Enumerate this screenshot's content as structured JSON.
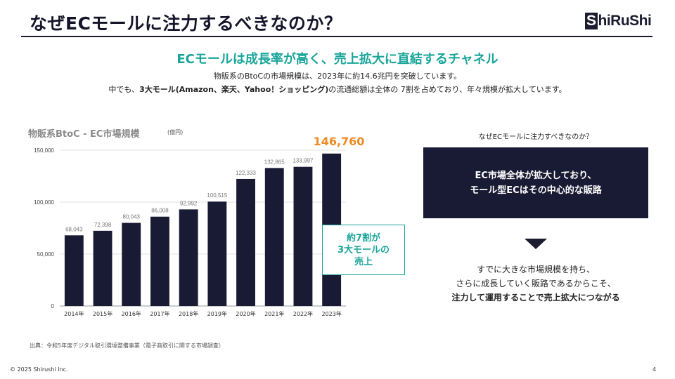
{
  "slide": {
    "title": "なぜECモールに注力するべきなのか？",
    "logo": {
      "part1": "S",
      "part2": "hiRuShi"
    },
    "headline": "ECモールは成長率が高く、売上拡大に直結するチャネル",
    "lead_line1": "物販系のBtoCの市場規模は、2023年に約14.6兆円を突破しています。",
    "lead_line2_pre": "中でも、",
    "lead_line2_bold": "3大モール(Amazon、楽天、Yahoo！ショッピング)",
    "lead_line2_post": "の流通総額は全体の 7割を占めており、年々規模が拡大しています。",
    "source": "出典：令和5年度デジタル取引環境整備事業（電子商取引に関する市場調査）",
    "copyright": "© 2025 Shirushi Inc.",
    "page_number": "4"
  },
  "chart_data": {
    "type": "bar",
    "title": "物販系BtoC - EC市場規模",
    "unit": "(億円)",
    "categories": [
      "2014年",
      "2015年",
      "2016年",
      "2017年",
      "2018年",
      "2019年",
      "2020年",
      "2021年",
      "2022年",
      "2023年"
    ],
    "values": [
      68043,
      72398,
      80043,
      86008,
      92992,
      100515,
      122333,
      132865,
      133997,
      146760
    ],
    "labels": [
      "68,043",
      "72,398",
      "80,043",
      "86,008",
      "92,992",
      "100,515",
      "122,333",
      "132,865",
      "133,997",
      "146,760"
    ],
    "highlight_label": "146,760",
    "yticks": [
      0,
      50000,
      100000,
      150000
    ],
    "ytick_labels": [
      "0",
      "50,000",
      "100,000",
      "150,000"
    ],
    "ylim": [
      0,
      150000
    ],
    "bar_color": "#191a33",
    "highlight_color": "#f08a24",
    "grid": true
  },
  "annotation": {
    "lines": [
      "約7割が",
      "3大モールの",
      "売上"
    ],
    "color": "#1aa59a"
  },
  "side": {
    "question": "なぜECモールに注力すべきなのか？",
    "box_line1": "EC市場全体が拡大しており、",
    "box_line2": "モール型ECはその中心的な販路",
    "conclusion_line1": "すでに大きな市場規模を持ち、",
    "conclusion_line2": "さらに成長していく販路であるからこそ、",
    "conclusion_line3": "注力して運用することで売上拡大につながる"
  }
}
